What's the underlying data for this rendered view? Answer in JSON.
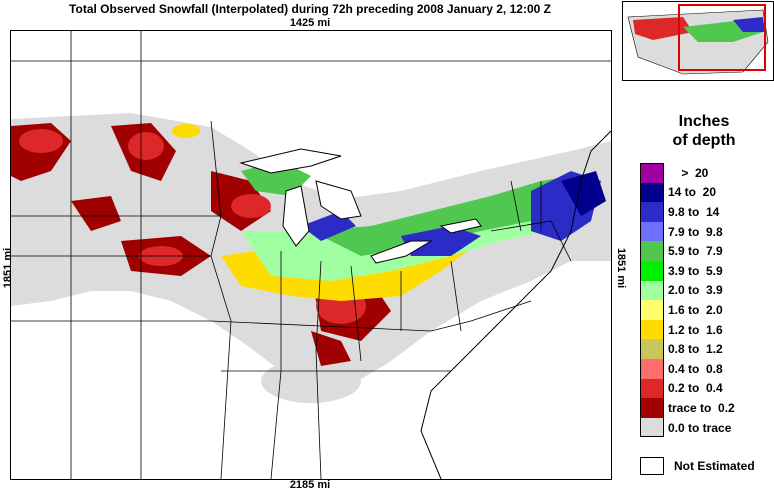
{
  "title": "Total Observed Snowfall (Interpolated) during 72h preceding 2008 January 2, 12:00 Z",
  "distances": {
    "top": "1425 mi",
    "bottom": "2185 mi",
    "left": "1851 mi",
    "right": "1851 mi"
  },
  "legend": {
    "title_line1": "Inches",
    "title_line2": "of depth",
    "items": [
      {
        "label": "    >  20",
        "color": "#a000a0"
      },
      {
        "label": "14 to  20",
        "color": "#00008c"
      },
      {
        "label": "9.8 to  14",
        "color": "#2b2bc8"
      },
      {
        "label": "7.9 to  9.8",
        "color": "#6e6eff"
      },
      {
        "label": "5.9 to  7.9",
        "color": "#50c850"
      },
      {
        "label": "3.9 to  5.9",
        "color": "#00f000"
      },
      {
        "label": "2.0 to  3.9",
        "color": "#a0ffa0"
      },
      {
        "label": "1.6 to  2.0",
        "color": "#ffff6e"
      },
      {
        "label": "1.2 to  1.6",
        "color": "#ffdc00"
      },
      {
        "label": "0.8 to  1.2",
        "color": "#c8c85a"
      },
      {
        "label": "0.4 to  0.8",
        "color": "#ff6e6e"
      },
      {
        "label": "0.2 to  0.4",
        "color": "#dc2828"
      },
      {
        "label": "trace to  0.2",
        "color": "#a00000"
      },
      {
        "label": "0.0 to trace",
        "color": "#dcdcdc"
      }
    ],
    "not_estimated": "Not Estimated"
  }
}
